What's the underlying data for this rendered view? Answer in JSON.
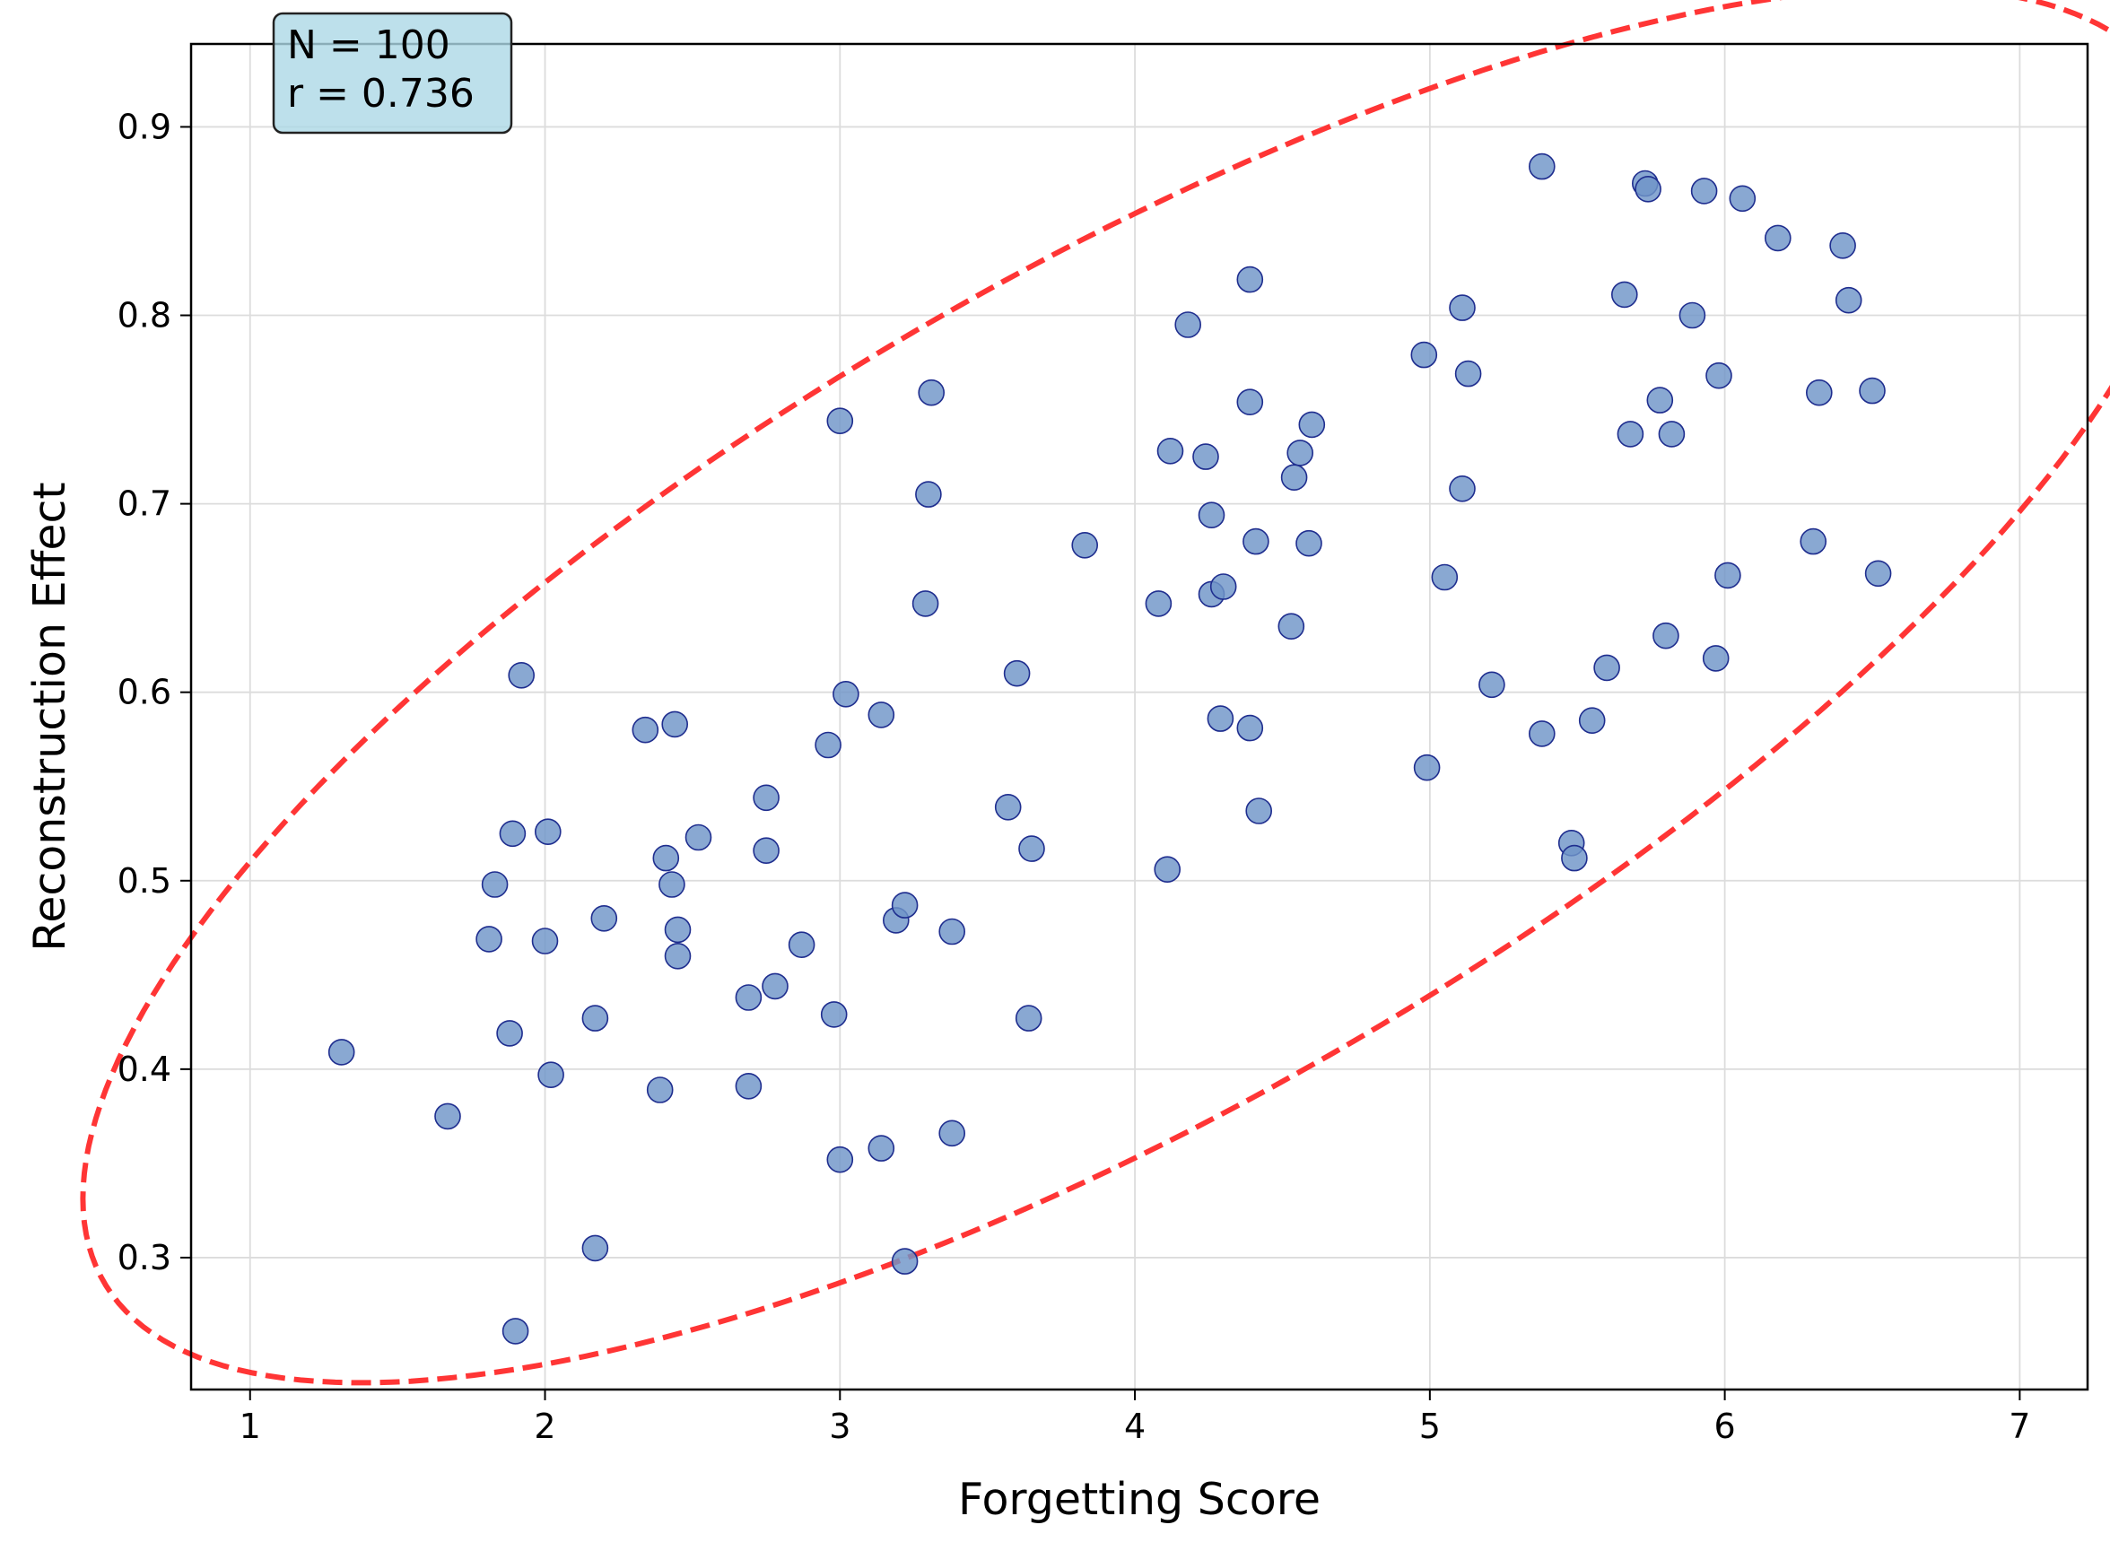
{
  "chart_data": {
    "type": "scatter",
    "xlabel": "Forgetting Score",
    "ylabel": "Reconstruction Effect",
    "xlim": [
      0.8,
      7.23
    ],
    "ylim": [
      0.23,
      0.944
    ],
    "xticks": [
      1,
      2,
      3,
      4,
      5,
      6,
      7
    ],
    "xtick_labels": [
      "1",
      "2",
      "3",
      "4",
      "5",
      "6",
      "7"
    ],
    "yticks": [
      0.3,
      0.4,
      0.5,
      0.6,
      0.7,
      0.8,
      0.9
    ],
    "ytick_labels": [
      "0.3",
      "0.4",
      "0.5",
      "0.6",
      "0.7",
      "0.8",
      "0.9"
    ],
    "grid": true,
    "annotation": {
      "lines": [
        "N = 100",
        "r = 0.736"
      ],
      "placement": "top-left",
      "background": "#add8e6"
    },
    "ellipse": {
      "center": [
        4.01,
        0.604
      ],
      "style": "dashed",
      "color": "#ff2a2a"
    },
    "point_color": "#6f95c8",
    "point_edge_color": "#1f2e8f",
    "series": [
      {
        "points": [
          [
            1.31,
            0.409
          ],
          [
            1.67,
            0.375
          ],
          [
            1.81,
            0.469
          ],
          [
            1.83,
            0.498
          ],
          [
            1.88,
            0.419
          ],
          [
            1.89,
            0.525
          ],
          [
            1.92,
            0.609
          ],
          [
            1.9,
            0.261
          ],
          [
            2.0,
            0.468
          ],
          [
            2.01,
            0.526
          ],
          [
            2.02,
            0.397
          ],
          [
            2.17,
            0.427
          ],
          [
            2.2,
            0.48
          ],
          [
            2.17,
            0.305
          ],
          [
            2.34,
            0.58
          ],
          [
            2.39,
            0.389
          ],
          [
            2.41,
            0.512
          ],
          [
            2.43,
            0.498
          ],
          [
            2.44,
            0.583
          ],
          [
            2.45,
            0.474
          ],
          [
            2.45,
            0.46
          ],
          [
            2.52,
            0.523
          ],
          [
            2.69,
            0.438
          ],
          [
            2.69,
            0.391
          ],
          [
            2.75,
            0.544
          ],
          [
            2.75,
            0.516
          ],
          [
            2.78,
            0.444
          ],
          [
            2.87,
            0.466
          ],
          [
            2.96,
            0.572
          ],
          [
            2.98,
            0.429
          ],
          [
            3.0,
            0.352
          ],
          [
            3.0,
            0.744
          ],
          [
            3.02,
            0.599
          ],
          [
            3.14,
            0.588
          ],
          [
            3.14,
            0.358
          ],
          [
            3.19,
            0.479
          ],
          [
            3.22,
            0.487
          ],
          [
            3.22,
            0.298
          ],
          [
            3.29,
            0.647
          ],
          [
            3.3,
            0.705
          ],
          [
            3.31,
            0.759
          ],
          [
            3.38,
            0.473
          ],
          [
            3.38,
            0.366
          ],
          [
            3.57,
            0.539
          ],
          [
            3.6,
            0.61
          ],
          [
            3.64,
            0.427
          ],
          [
            3.65,
            0.517
          ],
          [
            3.83,
            0.678
          ],
          [
            4.08,
            0.647
          ],
          [
            4.11,
            0.506
          ],
          [
            4.12,
            0.728
          ],
          [
            4.18,
            0.795
          ],
          [
            4.24,
            0.725
          ],
          [
            4.26,
            0.694
          ],
          [
            4.26,
            0.652
          ],
          [
            4.29,
            0.586
          ],
          [
            4.3,
            0.656
          ],
          [
            4.39,
            0.581
          ],
          [
            4.39,
            0.754
          ],
          [
            4.39,
            0.819
          ],
          [
            4.41,
            0.68
          ],
          [
            4.42,
            0.537
          ],
          [
            4.53,
            0.635
          ],
          [
            4.54,
            0.714
          ],
          [
            4.56,
            0.727
          ],
          [
            4.59,
            0.679
          ],
          [
            4.6,
            0.742
          ],
          [
            4.98,
            0.779
          ],
          [
            4.99,
            0.56
          ],
          [
            5.05,
            0.661
          ],
          [
            5.11,
            0.804
          ],
          [
            5.11,
            0.708
          ],
          [
            5.13,
            0.769
          ],
          [
            5.21,
            0.604
          ],
          [
            5.38,
            0.879
          ],
          [
            5.38,
            0.578
          ],
          [
            5.48,
            0.52
          ],
          [
            5.49,
            0.512
          ],
          [
            5.55,
            0.585
          ],
          [
            5.6,
            0.613
          ],
          [
            5.66,
            0.811
          ],
          [
            5.68,
            0.737
          ],
          [
            5.73,
            0.87
          ],
          [
            5.74,
            0.867
          ],
          [
            5.78,
            0.755
          ],
          [
            5.8,
            0.63
          ],
          [
            5.82,
            0.737
          ],
          [
            5.89,
            0.8
          ],
          [
            5.93,
            0.866
          ],
          [
            5.97,
            0.618
          ],
          [
            5.98,
            0.768
          ],
          [
            6.01,
            0.662
          ],
          [
            6.06,
            0.862
          ],
          [
            6.18,
            0.841
          ],
          [
            6.3,
            0.68
          ],
          [
            6.32,
            0.759
          ],
          [
            6.4,
            0.837
          ],
          [
            6.42,
            0.808
          ],
          [
            6.5,
            0.76
          ],
          [
            6.52,
            0.663
          ]
        ]
      }
    ]
  }
}
